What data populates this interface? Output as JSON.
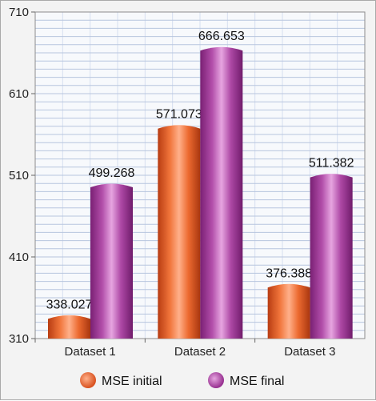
{
  "chart_data": {
    "type": "bar",
    "title": "",
    "xlabel": "",
    "ylabel": "",
    "categories": [
      "Dataset 1",
      "Dataset 2",
      "Dataset 3"
    ],
    "series": [
      {
        "name": "MSE initial",
        "values": [
          338.027,
          571.073,
          376.388
        ],
        "color": "#e8602c"
      },
      {
        "name": "MSE final",
        "values": [
          499.268,
          666.653,
          511.382
        ],
        "color": "#a63f9e"
      }
    ],
    "ylim": [
      310,
      710
    ],
    "yticks": [
      "310",
      "410",
      "510",
      "610",
      "710"
    ],
    "data_labels": [
      [
        "338.027",
        "571.073",
        "376.388"
      ],
      [
        "499.268",
        "666.653",
        "511.382"
      ]
    ],
    "grid": true,
    "legend": "bottom"
  }
}
